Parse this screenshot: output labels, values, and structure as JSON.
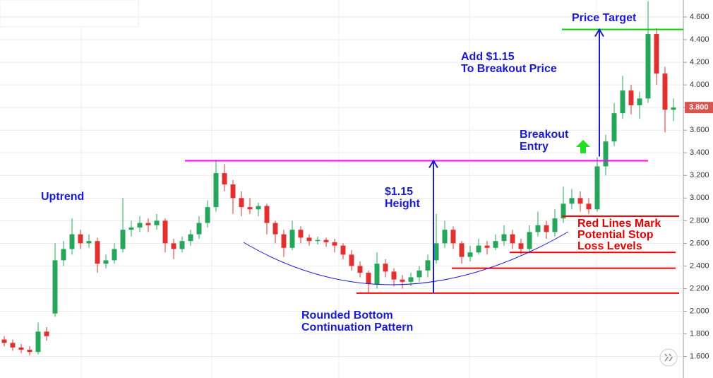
{
  "chart_data": {
    "type": "candlestick",
    "up_color": "#26a65b",
    "down_color": "#e0312f",
    "ylim": [
      1.41,
      4.75
    ],
    "yticks": [
      {
        "value": 1.6,
        "label": "1.600"
      },
      {
        "value": 1.8,
        "label": "1.800"
      },
      {
        "value": 2.0,
        "label": "2.000"
      },
      {
        "value": 2.2,
        "label": "2.200"
      },
      {
        "value": 2.4,
        "label": "2.400"
      },
      {
        "value": 2.6,
        "label": "2.600"
      },
      {
        "value": 2.8,
        "label": "2.800"
      },
      {
        "value": 3.0,
        "label": "3.000"
      },
      {
        "value": 3.2,
        "label": "3.200"
      },
      {
        "value": 3.4,
        "label": "3.400"
      },
      {
        "value": 3.6,
        "label": "3.600"
      },
      {
        "value": 3.8,
        "label": "3.800"
      },
      {
        "value": 4.0,
        "label": "4.000"
      },
      {
        "value": 4.2,
        "label": "4.200"
      },
      {
        "value": 4.4,
        "label": "4.400"
      },
      {
        "value": 4.6,
        "label": "4.600"
      }
    ],
    "grid": true,
    "last_price": {
      "value": 3.8,
      "label": "3.800",
      "color": "#d9534f"
    },
    "candles": [
      [
        1.75,
        1.78,
        1.69,
        1.72
      ],
      [
        1.72,
        1.75,
        1.65,
        1.68
      ],
      [
        1.68,
        1.71,
        1.63,
        1.66
      ],
      [
        1.66,
        1.69,
        1.61,
        1.64
      ],
      [
        1.64,
        1.9,
        1.62,
        1.82
      ],
      [
        1.82,
        1.86,
        1.74,
        1.78
      ],
      [
        1.98,
        2.6,
        1.95,
        2.45
      ],
      [
        2.45,
        2.62,
        2.4,
        2.55
      ],
      [
        2.55,
        2.82,
        2.5,
        2.68
      ],
      [
        2.68,
        2.72,
        2.55,
        2.6
      ],
      [
        2.6,
        2.68,
        2.56,
        2.62
      ],
      [
        2.62,
        2.65,
        2.34,
        2.42
      ],
      [
        2.42,
        2.5,
        2.38,
        2.45
      ],
      [
        2.45,
        2.6,
        2.42,
        2.55
      ],
      [
        2.55,
        3.0,
        2.52,
        2.72
      ],
      [
        2.72,
        2.8,
        2.66,
        2.74
      ],
      [
        2.74,
        2.84,
        2.7,
        2.78
      ],
      [
        2.78,
        2.82,
        2.7,
        2.76
      ],
      [
        2.76,
        2.86,
        2.72,
        2.8
      ],
      [
        2.8,
        2.82,
        2.52,
        2.6
      ],
      [
        2.6,
        2.64,
        2.46,
        2.55
      ],
      [
        2.55,
        2.66,
        2.52,
        2.62
      ],
      [
        2.62,
        2.72,
        2.58,
        2.68
      ],
      [
        2.68,
        2.84,
        2.64,
        2.78
      ],
      [
        2.78,
        2.98,
        2.74,
        2.92
      ],
      [
        2.92,
        3.34,
        2.88,
        3.22
      ],
      [
        3.22,
        3.3,
        3.06,
        3.12
      ],
      [
        3.12,
        3.16,
        2.86,
        3.0
      ],
      [
        3.0,
        3.06,
        2.84,
        2.92
      ],
      [
        2.92,
        3.0,
        2.86,
        2.9
      ],
      [
        2.9,
        2.96,
        2.84,
        2.93
      ],
      [
        2.93,
        2.95,
        2.68,
        2.78
      ],
      [
        2.78,
        2.8,
        2.6,
        2.68
      ],
      [
        2.68,
        2.72,
        2.48,
        2.56
      ],
      [
        2.56,
        2.8,
        2.54,
        2.72
      ],
      [
        2.72,
        2.75,
        2.6,
        2.65
      ],
      [
        2.65,
        2.68,
        2.58,
        2.62
      ],
      [
        2.62,
        2.66,
        2.59,
        2.63
      ],
      [
        2.63,
        2.65,
        2.57,
        2.61
      ],
      [
        2.61,
        2.64,
        2.52,
        2.58
      ],
      [
        2.58,
        2.6,
        2.46,
        2.5
      ],
      [
        2.5,
        2.54,
        2.36,
        2.4
      ],
      [
        2.4,
        2.44,
        2.3,
        2.34
      ],
      [
        2.34,
        2.36,
        2.16,
        2.24
      ],
      [
        2.24,
        2.52,
        2.2,
        2.42
      ],
      [
        2.42,
        2.46,
        2.3,
        2.35
      ],
      [
        2.35,
        2.38,
        2.22,
        2.28
      ],
      [
        2.28,
        2.32,
        2.2,
        2.26
      ],
      [
        2.26,
        2.34,
        2.22,
        2.3
      ],
      [
        2.3,
        2.4,
        2.26,
        2.36
      ],
      [
        2.36,
        2.5,
        2.3,
        2.45
      ],
      [
        2.45,
        2.86,
        2.42,
        2.6
      ],
      [
        2.6,
        2.8,
        2.56,
        2.72
      ],
      [
        2.72,
        2.75,
        2.55,
        2.6
      ],
      [
        2.6,
        2.62,
        2.42,
        2.48
      ],
      [
        2.48,
        2.58,
        2.44,
        2.52
      ],
      [
        2.52,
        2.64,
        2.5,
        2.58
      ],
      [
        2.58,
        2.62,
        2.5,
        2.56
      ],
      [
        2.56,
        2.68,
        2.54,
        2.62
      ],
      [
        2.62,
        2.76,
        2.58,
        2.68
      ],
      [
        2.68,
        2.72,
        2.55,
        2.6
      ],
      [
        2.6,
        2.64,
        2.5,
        2.55
      ],
      [
        2.55,
        2.76,
        2.52,
        2.7
      ],
      [
        2.7,
        2.88,
        2.66,
        2.76
      ],
      [
        2.76,
        2.8,
        2.64,
        2.7
      ],
      [
        2.7,
        2.9,
        2.66,
        2.82
      ],
      [
        2.82,
        3.1,
        2.78,
        2.95
      ],
      [
        2.95,
        3.08,
        2.9,
        3.0
      ],
      [
        3.0,
        3.06,
        2.88,
        2.95
      ],
      [
        2.95,
        3.0,
        2.86,
        2.9
      ],
      [
        2.9,
        3.36,
        2.88,
        3.28
      ],
      [
        3.28,
        3.56,
        3.2,
        3.5
      ],
      [
        3.5,
        3.84,
        3.46,
        3.75
      ],
      [
        3.75,
        4.08,
        3.7,
        3.95
      ],
      [
        3.95,
        4.0,
        3.74,
        3.82
      ],
      [
        3.82,
        3.94,
        3.7,
        3.88
      ],
      [
        3.88,
        4.74,
        3.84,
        4.45
      ],
      [
        4.45,
        4.5,
        4.0,
        4.1
      ],
      [
        4.1,
        4.16,
        3.58,
        3.78
      ],
      [
        3.78,
        3.88,
        3.68,
        3.8
      ]
    ],
    "levels": [
      {
        "value": 3.33,
        "color": "#ff00ff"
      },
      {
        "value": 4.49,
        "color": "#00cc00"
      },
      {
        "value": 2.16,
        "color": "#ff0000"
      },
      {
        "value": 2.38,
        "color": "#ff0000"
      },
      {
        "value": 2.52,
        "color": "#ff0000"
      },
      {
        "value": 2.84,
        "color": "#ff0000"
      }
    ],
    "annotations": [
      {
        "text": "Price Target",
        "color": "#1a1ad0"
      },
      {
        "text": "Add $1.15",
        "color": "#1a1ad0"
      },
      {
        "text": "To Breakout Price",
        "color": "#1a1ad0"
      },
      {
        "text": "Breakout",
        "color": "#1a1ad0"
      },
      {
        "text": "Entry",
        "color": "#1a1ad0"
      },
      {
        "text": "$1.15",
        "color": "#1a1ad0"
      },
      {
        "text": "Height",
        "color": "#1a1ad0"
      },
      {
        "text": "Uptrend",
        "color": "#1a1ad0"
      },
      {
        "text": "Rounded Bottom",
        "color": "#1a1ad0"
      },
      {
        "text": "Continuation Pattern",
        "color": "#1a1ad0"
      },
      {
        "text": "Red Lines Mark",
        "color": "#e00000"
      },
      {
        "text": "Potential Stop",
        "color": "#e00000"
      },
      {
        "text": "Loss Levels",
        "color": "#e00000"
      }
    ]
  }
}
